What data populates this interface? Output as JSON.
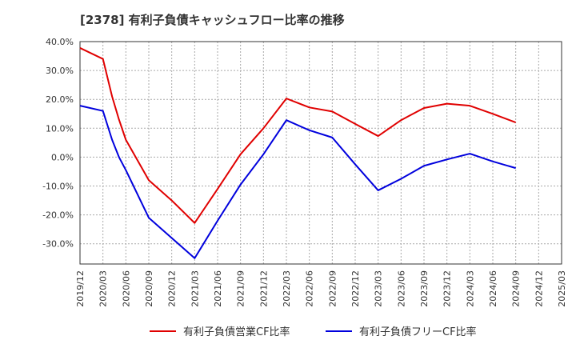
{
  "chart_data": {
    "type": "line",
    "title": "[2378]  有利子負債キャッシュフロー比率の推移",
    "xlabel": "",
    "ylabel": "",
    "ylim": [
      -37,
      40
    ],
    "yticks": [
      40,
      30,
      20,
      10,
      0,
      -10,
      -20,
      -30
    ],
    "ytick_labels": [
      "40.0%",
      "30.0%",
      "20.0%",
      "10.0%",
      "0.0%",
      "-10.0%",
      "-20.0%",
      "-30.0%"
    ],
    "x_ticks": [
      "2019/12",
      "2020/03",
      "2020/06",
      "2020/09",
      "2020/12",
      "2021/03",
      "2021/06",
      "2021/09",
      "2021/12",
      "2022/03",
      "2022/06",
      "2022/09",
      "2022/12",
      "2023/03",
      "2023/06",
      "2023/09",
      "2023/12",
      "2024/03",
      "2024/06",
      "2024/09",
      "2024/12",
      "2025/03"
    ],
    "grid": true,
    "legend_position": "bottom",
    "series": [
      {
        "name": "有利子負債営業CF比率",
        "color": "#e00000",
        "points": [
          [
            0,
            37.8
          ],
          [
            1,
            34.0
          ],
          [
            1.4,
            21.0
          ],
          [
            1.7,
            13.0
          ],
          [
            2,
            6.0
          ],
          [
            3,
            -8.0
          ],
          [
            4,
            -15.0
          ],
          [
            5,
            -22.8
          ],
          [
            6,
            -11.0
          ],
          [
            7,
            1.0
          ],
          [
            8,
            10.0
          ],
          [
            9,
            20.3
          ],
          [
            10,
            17.2
          ],
          [
            11,
            15.8
          ],
          [
            12,
            11.5
          ],
          [
            13,
            7.3
          ],
          [
            14,
            12.8
          ],
          [
            15,
            17.0
          ],
          [
            16,
            18.5
          ],
          [
            17,
            17.8
          ],
          [
            18,
            15.0
          ],
          [
            19,
            12.0
          ]
        ]
      },
      {
        "name": "有利子負債フリーCF比率",
        "color": "#0000dd",
        "points": [
          [
            0,
            17.8
          ],
          [
            1,
            16.0
          ],
          [
            1.4,
            6.0
          ],
          [
            1.7,
            0.0
          ],
          [
            2,
            -4.5
          ],
          [
            3,
            -21.0
          ],
          [
            4,
            -28.0
          ],
          [
            5,
            -35.0
          ],
          [
            6,
            -22.0
          ],
          [
            7,
            -9.5
          ],
          [
            8,
            1.0
          ],
          [
            9,
            12.8
          ],
          [
            10,
            9.3
          ],
          [
            11,
            6.8
          ],
          [
            12,
            -2.5
          ],
          [
            13,
            -11.5
          ],
          [
            14,
            -7.5
          ],
          [
            15,
            -3.0
          ],
          [
            16,
            -0.8
          ],
          [
            17,
            1.2
          ],
          [
            18,
            -1.5
          ],
          [
            19,
            -3.8
          ]
        ]
      }
    ]
  }
}
